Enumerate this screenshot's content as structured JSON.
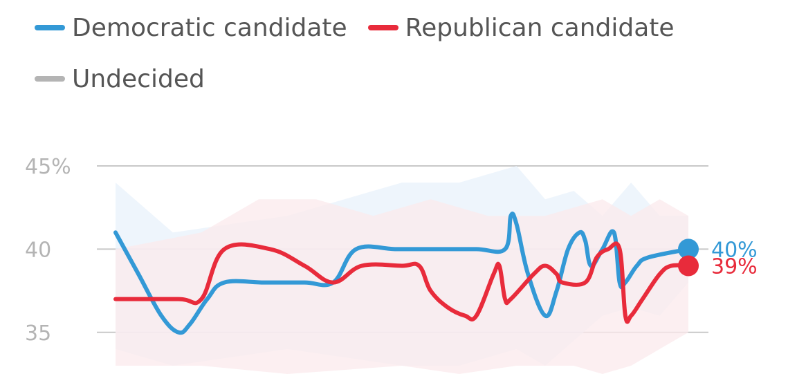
{
  "legend": {
    "dem": {
      "label": "Democratic candidate",
      "color": "#3399d6"
    },
    "rep": {
      "label": "Republican candidate",
      "color": "#e82b3b"
    },
    "und": {
      "label": "Undecided",
      "color": "#b4b4b4"
    }
  },
  "chart_data": {
    "type": "line",
    "ylim": [
      32.5,
      45
    ],
    "yticks": [
      {
        "value": 45,
        "label": "45%"
      },
      {
        "value": 40,
        "label": "40"
      },
      {
        "value": 35,
        "label": "35"
      }
    ],
    "grid": true,
    "series": [
      {
        "name": "Democratic candidate",
        "color": "#3399d6",
        "band_color": "#e8f2fb",
        "end_label": "40%",
        "points": [
          [
            0,
            41
          ],
          [
            4,
            38.5
          ],
          [
            8,
            36
          ],
          [
            11,
            35
          ],
          [
            13,
            35.5
          ],
          [
            16,
            37
          ],
          [
            19,
            38
          ],
          [
            26,
            38
          ],
          [
            33,
            38
          ],
          [
            38,
            38
          ],
          [
            42,
            40
          ],
          [
            49,
            40
          ],
          [
            56,
            40
          ],
          [
            63,
            40
          ],
          [
            68,
            40
          ],
          [
            69,
            42
          ],
          [
            70,
            41.5
          ],
          [
            72,
            38.5
          ],
          [
            75,
            36
          ],
          [
            77,
            37.5
          ],
          [
            79,
            40
          ],
          [
            81,
            41
          ],
          [
            82,
            40.5
          ],
          [
            83,
            39
          ],
          [
            85,
            40
          ],
          [
            87,
            41
          ],
          [
            88,
            38
          ],
          [
            89,
            38
          ],
          [
            91,
            39
          ],
          [
            93,
            39.5
          ],
          [
            100,
            40
          ]
        ],
        "lower": [
          [
            0,
            34
          ],
          [
            10,
            33
          ],
          [
            30,
            34
          ],
          [
            50,
            33
          ],
          [
            60,
            33
          ],
          [
            70,
            34
          ],
          [
            75,
            33
          ],
          [
            80,
            34.5
          ],
          [
            85,
            36
          ],
          [
            90,
            36.5
          ],
          [
            95,
            36
          ],
          [
            100,
            38
          ]
        ],
        "upper": [
          [
            0,
            44
          ],
          [
            10,
            41
          ],
          [
            30,
            42
          ],
          [
            50,
            44
          ],
          [
            60,
            44
          ],
          [
            70,
            45
          ],
          [
            75,
            43
          ],
          [
            80,
            43.5
          ],
          [
            85,
            42
          ],
          [
            90,
            44
          ],
          [
            95,
            42
          ],
          [
            100,
            42
          ]
        ]
      },
      {
        "name": "Republican candidate",
        "color": "#e82b3b",
        "band_color": "#fbe9ec",
        "end_label": "39%",
        "points": [
          [
            0,
            37
          ],
          [
            11,
            37
          ],
          [
            15,
            37
          ],
          [
            19,
            40
          ],
          [
            27,
            40
          ],
          [
            33,
            39
          ],
          [
            38,
            38
          ],
          [
            43,
            39
          ],
          [
            50,
            39
          ],
          [
            53,
            39
          ],
          [
            55,
            37.5
          ],
          [
            58,
            36.5
          ],
          [
            61,
            36
          ],
          [
            63,
            36
          ],
          [
            66,
            38.5
          ],
          [
            67,
            39
          ],
          [
            68,
            37
          ],
          [
            69,
            37
          ],
          [
            73,
            38.5
          ],
          [
            75,
            39
          ],
          [
            77,
            38.5
          ],
          [
            78,
            38
          ],
          [
            82,
            38
          ],
          [
            84,
            39.5
          ],
          [
            86,
            40
          ],
          [
            88,
            40
          ],
          [
            89,
            36
          ],
          [
            90,
            36
          ],
          [
            92,
            37
          ],
          [
            95,
            38.5
          ],
          [
            97,
            39
          ],
          [
            100,
            39
          ]
        ],
        "lower": [
          [
            0,
            33
          ],
          [
            15,
            33
          ],
          [
            30,
            32.5
          ],
          [
            50,
            33
          ],
          [
            60,
            32.5
          ],
          [
            70,
            33
          ],
          [
            80,
            33
          ],
          [
            85,
            32.5
          ],
          [
            90,
            33
          ],
          [
            95,
            34
          ],
          [
            100,
            35
          ]
        ],
        "upper": [
          [
            0,
            40
          ],
          [
            15,
            41
          ],
          [
            25,
            43
          ],
          [
            35,
            43
          ],
          [
            45,
            42
          ],
          [
            55,
            43
          ],
          [
            65,
            42
          ],
          [
            75,
            42
          ],
          [
            85,
            43
          ],
          [
            90,
            42
          ],
          [
            95,
            43
          ],
          [
            100,
            42
          ]
        ]
      }
    ]
  }
}
